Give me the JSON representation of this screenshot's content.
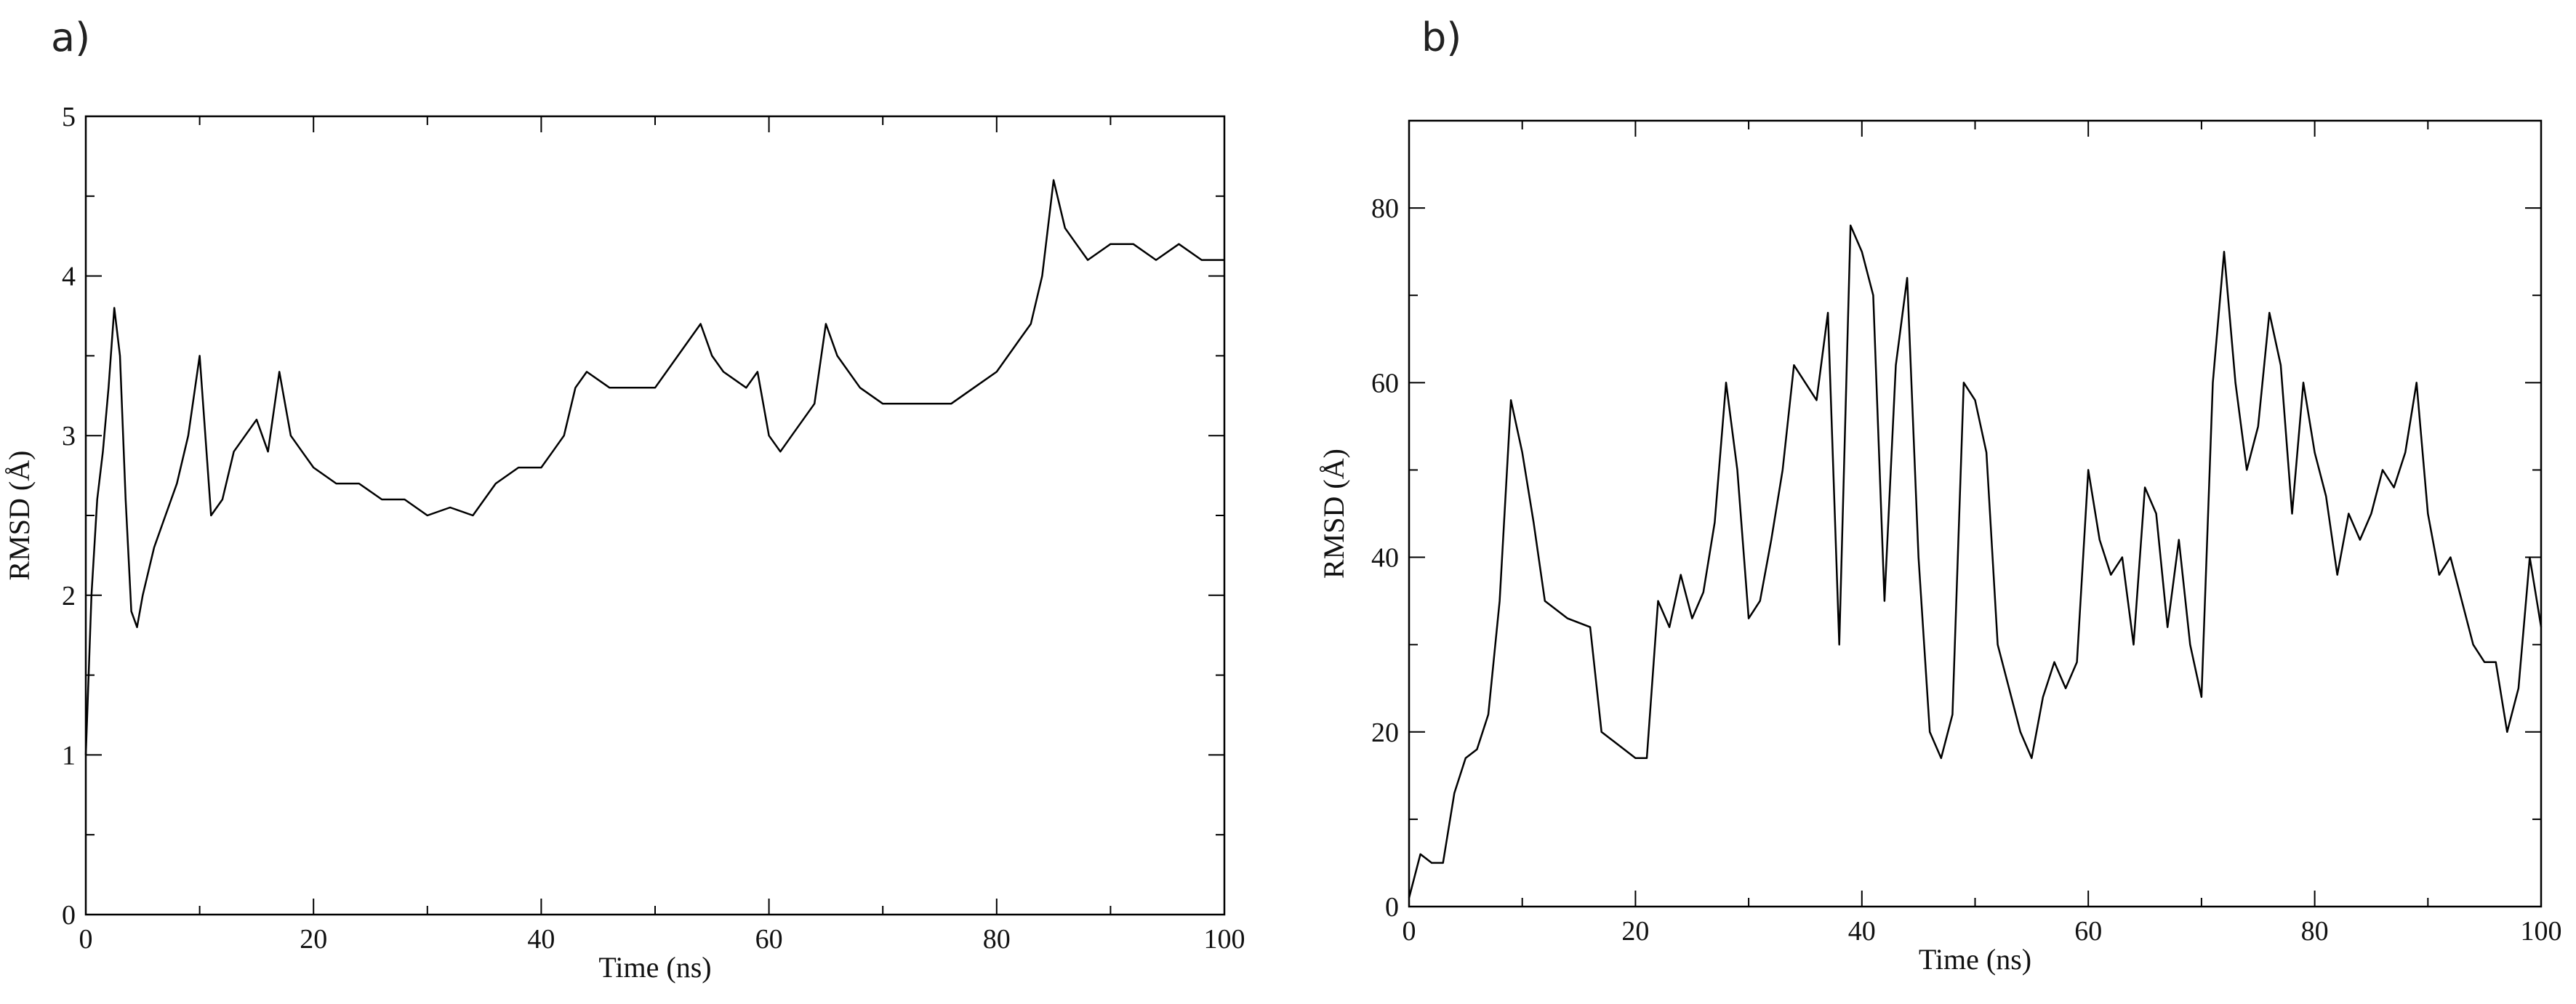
{
  "chart_data": [
    {
      "panel": "a)",
      "type": "line",
      "xlabel": "Time (ns)",
      "ylabel": "RMSD (Å)",
      "xlim": [
        0,
        100
      ],
      "ylim": [
        0,
        5
      ],
      "x_ticks": [
        0,
        20,
        40,
        60,
        80,
        100
      ],
      "y_ticks": [
        0,
        1,
        2,
        3,
        4,
        5
      ],
      "grid": false,
      "line_color": "#000000",
      "x": [
        0,
        0.5,
        1,
        1.5,
        2,
        2.5,
        3,
        3.5,
        4,
        4.5,
        5,
        6,
        7,
        8,
        9,
        10,
        11,
        12,
        13,
        14,
        15,
        16,
        17,
        18,
        19,
        20,
        22,
        24,
        26,
        28,
        30,
        32,
        34,
        36,
        38,
        40,
        41,
        42,
        43,
        44,
        46,
        48,
        50,
        52,
        54,
        55,
        56,
        58,
        59,
        60,
        61,
        62,
        64,
        65,
        66,
        68,
        70,
        72,
        74,
        76,
        78,
        80,
        82,
        83,
        84,
        85,
        86,
        87,
        88,
        90,
        92,
        94,
        96,
        98,
        100
      ],
      "y": [
        1.0,
        2.0,
        2.6,
        2.9,
        3.3,
        3.8,
        3.5,
        2.6,
        1.9,
        1.8,
        2.0,
        2.3,
        2.5,
        2.7,
        3.0,
        3.5,
        2.5,
        2.6,
        2.9,
        3.0,
        3.1,
        2.9,
        3.4,
        3.0,
        2.9,
        2.8,
        2.7,
        2.7,
        2.6,
        2.6,
        2.5,
        2.55,
        2.5,
        2.7,
        2.8,
        2.8,
        2.9,
        3.0,
        3.3,
        3.4,
        3.3,
        3.3,
        3.3,
        3.5,
        3.7,
        3.5,
        3.4,
        3.3,
        3.4,
        3.0,
        2.9,
        3.0,
        3.2,
        3.7,
        3.5,
        3.3,
        3.2,
        3.2,
        3.2,
        3.2,
        3.3,
        3.4,
        3.6,
        3.7,
        4.0,
        4.6,
        4.3,
        4.2,
        4.1,
        4.2,
        4.2,
        4.1,
        4.2,
        4.1,
        4.1
      ]
    },
    {
      "panel": "b)",
      "type": "line",
      "xlabel": "Time (ns)",
      "ylabel": "RMSD (Å)",
      "xlim": [
        0,
        100
      ],
      "ylim": [
        0,
        90
      ],
      "x_ticks": [
        0,
        20,
        40,
        60,
        80,
        100
      ],
      "y_ticks": [
        0,
        20,
        40,
        60,
        80
      ],
      "grid": false,
      "line_color": "#000000",
      "x": [
        0,
        1,
        2,
        3,
        4,
        5,
        6,
        7,
        8,
        9,
        10,
        11,
        12,
        14,
        16,
        17,
        18,
        20,
        21,
        22,
        23,
        24,
        25,
        26,
        27,
        28,
        29,
        30,
        31,
        32,
        33,
        34,
        35,
        36,
        37,
        38,
        39,
        40,
        41,
        42,
        43,
        44,
        45,
        46,
        47,
        48,
        49,
        50,
        51,
        52,
        53,
        54,
        55,
        56,
        57,
        58,
        59,
        60,
        61,
        62,
        63,
        64,
        65,
        66,
        67,
        68,
        69,
        70,
        71,
        72,
        73,
        74,
        75,
        76,
        77,
        78,
        79,
        80,
        81,
        82,
        83,
        84,
        85,
        86,
        87,
        88,
        89,
        90,
        91,
        92,
        93,
        94,
        95,
        96,
        97,
        98,
        99,
        100
      ],
      "y": [
        1,
        6,
        5,
        5,
        13,
        17,
        18,
        22,
        35,
        58,
        52,
        44,
        35,
        33,
        32,
        20,
        19,
        17,
        17,
        35,
        32,
        38,
        33,
        36,
        44,
        60,
        50,
        33,
        35,
        42,
        50,
        62,
        60,
        58,
        68,
        30,
        78,
        75,
        70,
        35,
        62,
        72,
        40,
        20,
        17,
        22,
        60,
        58,
        52,
        30,
        25,
        20,
        17,
        24,
        28,
        25,
        28,
        50,
        42,
        38,
        40,
        30,
        48,
        45,
        32,
        42,
        30,
        24,
        60,
        75,
        60,
        50,
        55,
        68,
        62,
        45,
        60,
        52,
        47,
        38,
        45,
        42,
        45,
        50,
        48,
        52,
        60,
        45,
        38,
        40,
        35,
        30,
        28,
        28,
        20,
        25,
        40,
        32
      ]
    }
  ]
}
